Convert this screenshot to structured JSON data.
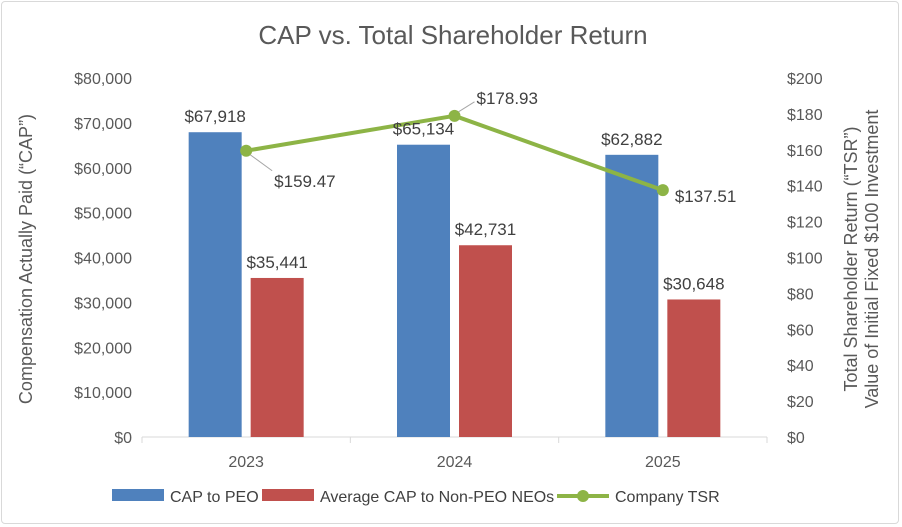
{
  "chart_data": {
    "type": "bar+line",
    "title": "CAP vs. Total Shareholder Return",
    "categories": [
      "2023",
      "2024",
      "2025"
    ],
    "series": [
      {
        "name": "CAP to PEO",
        "kind": "bar",
        "axis": "left",
        "color": "#4f81bd",
        "values": [
          67918,
          65134,
          62882
        ],
        "labels": [
          "$67,918",
          "$65,134",
          "$62,882"
        ]
      },
      {
        "name": "Average CAP to Non-PEO NEOs",
        "kind": "bar",
        "axis": "left",
        "color": "#c0504d",
        "values": [
          35441,
          42731,
          30648
        ],
        "labels": [
          "$35,441",
          "$42,731",
          "$30,648"
        ]
      },
      {
        "name": "Company TSR",
        "kind": "line",
        "axis": "right",
        "color": "#8db446",
        "values": [
          159.47,
          178.93,
          137.51
        ],
        "labels": [
          "$159.47",
          "$178.93",
          "$137.51"
        ]
      }
    ],
    "ylabel_left": "Compensation Actually Paid (“CAP”)",
    "ylabel_right_line1": "Total Shareholder Return (“TSR”)",
    "ylabel_right_line2": "Value of Initial Fixed $100 Investment",
    "ylim_left": [
      0,
      80000
    ],
    "ylim_right": [
      0,
      200
    ],
    "yticks_left": [
      "$0",
      "$10,000",
      "$20,000",
      "$30,000",
      "$40,000",
      "$50,000",
      "$60,000",
      "$70,000",
      "$80,000"
    ],
    "yticks_right": [
      "$0",
      "$20",
      "$40",
      "$60",
      "$80",
      "$100",
      "$120",
      "$140",
      "$160",
      "$180",
      "$200"
    ],
    "legend_position": "bottom",
    "grid": false
  }
}
